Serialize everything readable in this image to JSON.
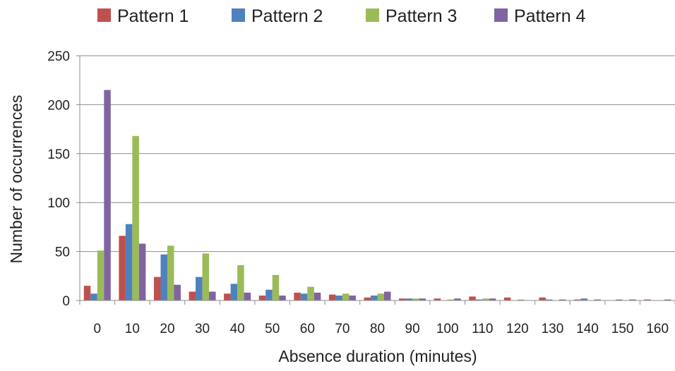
{
  "chart_data": {
    "type": "bar",
    "title": "",
    "xlabel": "Absence duration (minutes)",
    "ylabel": "Number of occurrences",
    "ylim": [
      0,
      250
    ],
    "yticks": [
      0,
      50,
      100,
      150,
      200,
      250
    ],
    "grid": true,
    "legend_position": "top",
    "categories": [
      "0",
      "10",
      "20",
      "30",
      "40",
      "50",
      "60",
      "70",
      "80",
      "90",
      "100",
      "110",
      "120",
      "130",
      "140",
      "150",
      "160"
    ],
    "series": [
      {
        "name": "Pattern 1",
        "color": "#C0504D",
        "values": [
          15,
          66,
          24,
          9,
          7,
          5,
          8,
          6,
          3,
          2,
          2,
          4,
          3,
          3,
          1,
          0,
          1
        ]
      },
      {
        "name": "Pattern 2",
        "color": "#4F81BD",
        "values": [
          7,
          78,
          47,
          24,
          17,
          11,
          7,
          5,
          5,
          2,
          0,
          1,
          0,
          1,
          2,
          1,
          0
        ]
      },
      {
        "name": "Pattern 3",
        "color": "#9BBB59",
        "values": [
          51,
          168,
          56,
          48,
          36,
          26,
          14,
          7,
          7,
          2,
          1,
          2,
          1,
          0,
          0,
          0,
          0
        ]
      },
      {
        "name": "Pattern 4",
        "color": "#8064A2",
        "values": [
          215,
          58,
          16,
          9,
          8,
          5,
          8,
          5,
          9,
          2,
          2,
          2,
          0,
          1,
          1,
          1,
          1
        ]
      }
    ]
  }
}
